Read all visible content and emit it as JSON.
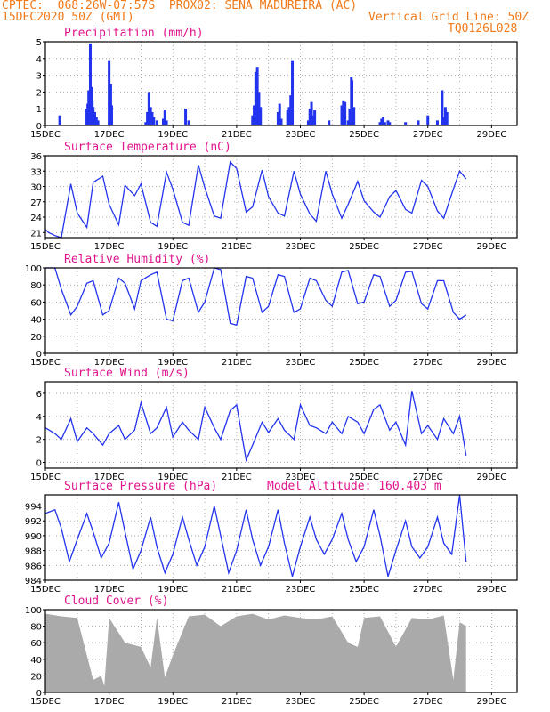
{
  "header": {
    "line1_left": "CPTEC:  068:26W-07:57S  PROX02: SENA MADUREIRA (AC)",
    "line2_left": "15DEC2020 50Z (GMT)",
    "line2_right": "Vertical Grid Line: 50Z",
    "line3_right": "TQ0126L028"
  },
  "colors": {
    "header": "#f07a1a",
    "title": "#e0148c",
    "line": "#2233ee",
    "bar": "#2233ee",
    "cloud": "#aaaaaa",
    "grid": "#999999"
  },
  "chart_data": [
    {
      "type": "bar",
      "title": "Precipitation (mm/h)",
      "x_labels": [
        "15DEC",
        "17DEC",
        "19DEC",
        "21DEC",
        "23DEC",
        "25DEC",
        "27DEC",
        "29DEC"
      ],
      "ylim": [
        0,
        5
      ],
      "yticks": [
        "0",
        "1",
        "2",
        "3",
        "4",
        "5"
      ],
      "x_days": [
        0.45,
        1.3,
        1.33,
        1.36,
        1.38,
        1.41,
        1.44,
        1.47,
        1.5,
        1.55,
        1.6,
        1.65,
        2.0,
        2.05,
        2.08,
        3.15,
        3.2,
        3.25,
        3.3,
        3.35,
        3.4,
        3.5,
        3.7,
        3.75,
        3.8,
        4.4,
        4.5,
        6.5,
        6.55,
        6.6,
        6.65,
        6.7,
        6.75,
        7.3,
        7.35,
        7.4,
        7.6,
        7.65,
        7.7,
        7.75,
        8.25,
        8.3,
        8.35,
        8.4,
        8.45,
        8.9,
        9.3,
        9.35,
        9.4,
        9.5,
        9.55,
        9.6,
        9.62,
        9.68,
        10.5,
        10.55,
        10.6,
        10.65,
        10.75,
        10.8,
        11.3,
        11.7,
        12.0,
        12.3,
        12.45,
        12.5,
        12.55,
        12.6
      ],
      "values": [
        0.6,
        1.0,
        1.3,
        2.1,
        1.8,
        4.9,
        2.3,
        1.5,
        1.1,
        0.8,
        0.5,
        0.3,
        3.9,
        2.5,
        1.2,
        0.2,
        0.8,
        2.0,
        1.1,
        0.8,
        0.5,
        0.3,
        0.4,
        0.9,
        0.3,
        1.0,
        0.3,
        0.6,
        1.2,
        3.2,
        3.5,
        2.0,
        1.1,
        0.8,
        1.3,
        0.4,
        0.9,
        1.1,
        1.8,
        3.9,
        0.3,
        1.0,
        1.4,
        0.6,
        0.9,
        0.3,
        1.2,
        1.5,
        1.4,
        0.3,
        1.0,
        2.9,
        2.7,
        1.1,
        0.2,
        0.4,
        0.5,
        0.2,
        0.3,
        0.2,
        0.2,
        0.3,
        0.6,
        0.3,
        2.1,
        0.5,
        1.1,
        0.8
      ]
    },
    {
      "type": "line",
      "title": "Surface Temperature (nC)",
      "x_labels": [
        "15DEC",
        "17DEC",
        "19DEC",
        "21DEC",
        "23DEC",
        "25DEC",
        "27DEC",
        "29DEC"
      ],
      "ylim": [
        20,
        36
      ],
      "yticks": [
        "21",
        "24",
        "27",
        "30",
        "33",
        "36"
      ],
      "x_days": [
        0.0,
        0.1,
        0.3,
        0.5,
        0.8,
        1.0,
        1.3,
        1.5,
        1.8,
        2.0,
        2.3,
        2.5,
        2.8,
        3.0,
        3.3,
        3.5,
        3.8,
        4.0,
        4.3,
        4.5,
        4.8,
        5.0,
        5.3,
        5.5,
        5.8,
        6.0,
        6.3,
        6.5,
        6.8,
        7.0,
        7.3,
        7.5,
        7.8,
        8.0,
        8.3,
        8.5,
        8.8,
        9.0,
        9.3,
        9.5,
        9.8,
        10.0,
        10.3,
        10.5,
        10.8,
        11.0,
        11.3,
        11.5,
        11.8,
        12.0,
        12.3,
        12.5,
        12.8,
        13.0,
        13.2
      ],
      "values": [
        21.6,
        21.0,
        20.4,
        20.0,
        30.5,
        24.8,
        22.0,
        30.8,
        32.0,
        26.5,
        22.5,
        30.2,
        28.2,
        30.5,
        23.0,
        22.2,
        32.8,
        29.5,
        23.0,
        22.4,
        34.2,
        29.8,
        24.2,
        23.8,
        34.8,
        33.5,
        25.0,
        26.0,
        33.2,
        28.0,
        24.8,
        24.2,
        33.0,
        28.5,
        24.6,
        23.2,
        33.0,
        28.5,
        23.8,
        26.5,
        31.0,
        27.2,
        25.0,
        24.0,
        28.0,
        29.2,
        25.5,
        24.8,
        31.2,
        30.0,
        25.2,
        23.8,
        29.5,
        33.0,
        31.5
      ]
    },
    {
      "type": "line",
      "title": "Relative Humidity (%)",
      "x_labels": [
        "15DEC",
        "17DEC",
        "19DEC",
        "21DEC",
        "23DEC",
        "25DEC",
        "27DEC",
        "29DEC"
      ],
      "ylim": [
        0,
        100
      ],
      "yticks": [
        "0",
        "20",
        "40",
        "60",
        "80",
        "100"
      ],
      "x_days": [
        0.0,
        0.3,
        0.5,
        0.8,
        1.0,
        1.3,
        1.5,
        1.8,
        2.0,
        2.3,
        2.5,
        2.8,
        3.0,
        3.3,
        3.5,
        3.8,
        4.0,
        4.3,
        4.5,
        4.8,
        5.0,
        5.3,
        5.5,
        5.8,
        6.0,
        6.3,
        6.5,
        6.8,
        7.0,
        7.3,
        7.5,
        7.8,
        8.0,
        8.3,
        8.5,
        8.8,
        9.0,
        9.3,
        9.5,
        9.8,
        10.0,
        10.3,
        10.5,
        10.8,
        11.0,
        11.3,
        11.5,
        11.8,
        12.0,
        12.3,
        12.5,
        12.8,
        13.0,
        13.2
      ],
      "values": [
        100,
        100,
        75,
        45,
        55,
        82,
        85,
        45,
        50,
        88,
        82,
        52,
        85,
        92,
        95,
        40,
        38,
        85,
        88,
        48,
        60,
        100,
        98,
        35,
        33,
        90,
        88,
        48,
        55,
        92,
        90,
        48,
        52,
        88,
        85,
        62,
        55,
        95,
        97,
        58,
        60,
        92,
        90,
        55,
        62,
        95,
        96,
        58,
        52,
        85,
        85,
        48,
        40,
        45
      ]
    },
    {
      "type": "line",
      "title": "Surface Wind (m/s)",
      "x_labels": [
        "15DEC",
        "17DEC",
        "19DEC",
        "21DEC",
        "23DEC",
        "25DEC",
        "27DEC",
        "29DEC"
      ],
      "ylim": [
        -0.5,
        7
      ],
      "yticks": [
        "0",
        "2",
        "4",
        "6"
      ],
      "x_days": [
        0.0,
        0.3,
        0.5,
        0.8,
        1.0,
        1.3,
        1.5,
        1.8,
        2.0,
        2.3,
        2.5,
        2.8,
        3.0,
        3.3,
        3.5,
        3.8,
        4.0,
        4.3,
        4.5,
        4.8,
        5.0,
        5.3,
        5.5,
        5.8,
        6.0,
        6.3,
        6.5,
        6.8,
        7.0,
        7.3,
        7.5,
        7.8,
        8.0,
        8.3,
        8.5,
        8.8,
        9.0,
        9.3,
        9.5,
        9.8,
        10.0,
        10.3,
        10.5,
        10.8,
        11.0,
        11.3,
        11.5,
        11.8,
        12.0,
        12.3,
        12.5,
        12.8,
        13.0,
        13.2
      ],
      "values": [
        3.0,
        2.5,
        2.0,
        3.8,
        1.8,
        3.0,
        2.5,
        1.5,
        2.5,
        3.2,
        2.0,
        2.8,
        5.2,
        2.5,
        3.0,
        4.8,
        2.2,
        3.5,
        2.8,
        2.0,
        4.8,
        3.0,
        2.0,
        4.5,
        5.0,
        0.2,
        1.5,
        3.5,
        2.6,
        3.8,
        2.8,
        2.0,
        5.0,
        3.2,
        3.0,
        2.5,
        3.5,
        2.5,
        4.0,
        3.5,
        2.5,
        4.6,
        5.0,
        2.8,
        3.5,
        1.5,
        6.2,
        2.5,
        3.2,
        2.0,
        3.8,
        2.5,
        4.0,
        0.6
      ]
    },
    {
      "type": "line",
      "title": "Surface Pressure (hPa)",
      "annotation": "Model Altitude: 160.403 m",
      "x_labels": [
        "15DEC",
        "17DEC",
        "19DEC",
        "21DEC",
        "23DEC",
        "25DEC",
        "27DEC",
        "29DEC"
      ],
      "ylim": [
        984,
        995.5
      ],
      "yticks": [
        "984",
        "986",
        "988",
        "990",
        "992",
        "994"
      ],
      "x_days": [
        0.0,
        0.3,
        0.5,
        0.75,
        1.0,
        1.3,
        1.5,
        1.75,
        2.0,
        2.3,
        2.5,
        2.75,
        3.0,
        3.3,
        3.5,
        3.75,
        4.0,
        4.3,
        4.5,
        4.75,
        5.0,
        5.3,
        5.5,
        5.75,
        6.0,
        6.3,
        6.5,
        6.75,
        7.0,
        7.3,
        7.5,
        7.75,
        8.0,
        8.3,
        8.5,
        8.75,
        9.0,
        9.3,
        9.5,
        9.75,
        10.0,
        10.3,
        10.5,
        10.75,
        11.0,
        11.3,
        11.5,
        11.75,
        12.0,
        12.3,
        12.5,
        12.75,
        13.0,
        13.2
      ],
      "values": [
        993.0,
        993.5,
        991.0,
        986.5,
        989.5,
        993.0,
        990.5,
        987.0,
        989.0,
        994.5,
        990.5,
        985.5,
        988.0,
        992.5,
        988.5,
        985.0,
        987.5,
        992.5,
        989.5,
        986.0,
        988.5,
        994.0,
        990.0,
        985.0,
        988.0,
        993.5,
        989.5,
        986.0,
        988.5,
        993.5,
        989.0,
        984.5,
        988.5,
        992.5,
        989.5,
        987.5,
        989.5,
        993.0,
        989.5,
        986.5,
        988.5,
        993.5,
        990.0,
        984.5,
        988.0,
        992.0,
        988.5,
        987.0,
        988.5,
        992.5,
        989.0,
        987.5,
        995.5,
        986.5
      ]
    },
    {
      "type": "area",
      "title": "Cloud Cover (%)",
      "x_labels": [
        "15DEC",
        "17DEC",
        "19DEC",
        "21DEC",
        "23DEC",
        "25DEC",
        "27DEC",
        "29DEC"
      ],
      "ylim": [
        0,
        100
      ],
      "yticks": [
        "0",
        "20",
        "40",
        "60",
        "80",
        "100"
      ],
      "x_days": [
        0.0,
        0.5,
        1.0,
        1.5,
        1.75,
        1.85,
        2.0,
        2.5,
        3.0,
        3.3,
        3.5,
        3.75,
        4.0,
        4.5,
        5.0,
        5.5,
        6.0,
        6.5,
        7.0,
        7.5,
        8.0,
        8.5,
        9.0,
        9.5,
        9.8,
        10.0,
        10.5,
        11.0,
        11.5,
        12.0,
        12.5,
        12.8,
        13.0,
        13.2
      ],
      "values": [
        95,
        92,
        90,
        15,
        20,
        8,
        90,
        60,
        55,
        30,
        90,
        18,
        45,
        92,
        94,
        80,
        92,
        95,
        88,
        93,
        90,
        88,
        92,
        60,
        55,
        90,
        92,
        55,
        90,
        88,
        93,
        15,
        85,
        80
      ]
    }
  ]
}
